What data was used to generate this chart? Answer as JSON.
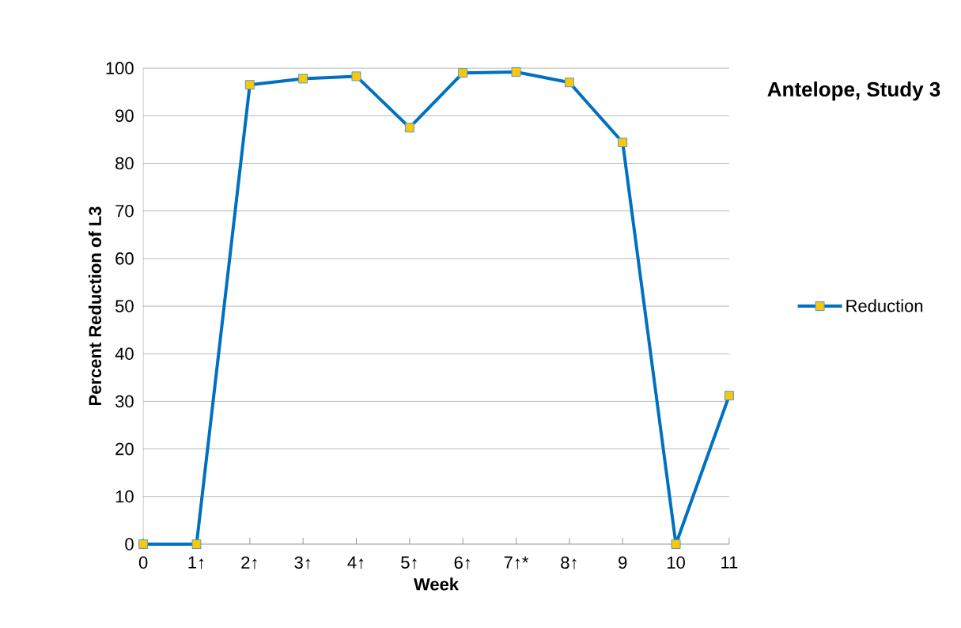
{
  "chart_data": {
    "type": "line",
    "title": "Antelope, Study 3",
    "xlabel": "Week",
    "ylabel": "Percent Reduction of L3",
    "categories": [
      "0",
      "1↑",
      "2↑",
      "3↑",
      "4↑",
      "5↑",
      "6↑",
      "7↑*",
      "8↑",
      "9",
      "10",
      "11"
    ],
    "series": [
      {
        "name": "Reduction",
        "color": "#0070c0",
        "values": [
          0,
          0,
          96.5,
          97.8,
          98.3,
          87.5,
          99.0,
          99.2,
          97.0,
          84.4,
          0,
          31.2
        ]
      }
    ],
    "ylim": [
      0,
      100
    ],
    "yticks": [
      0,
      10,
      20,
      30,
      40,
      50,
      60,
      70,
      80,
      90,
      100
    ],
    "grid": "y",
    "legend": "right",
    "marker": "square",
    "line_style": "solid"
  }
}
